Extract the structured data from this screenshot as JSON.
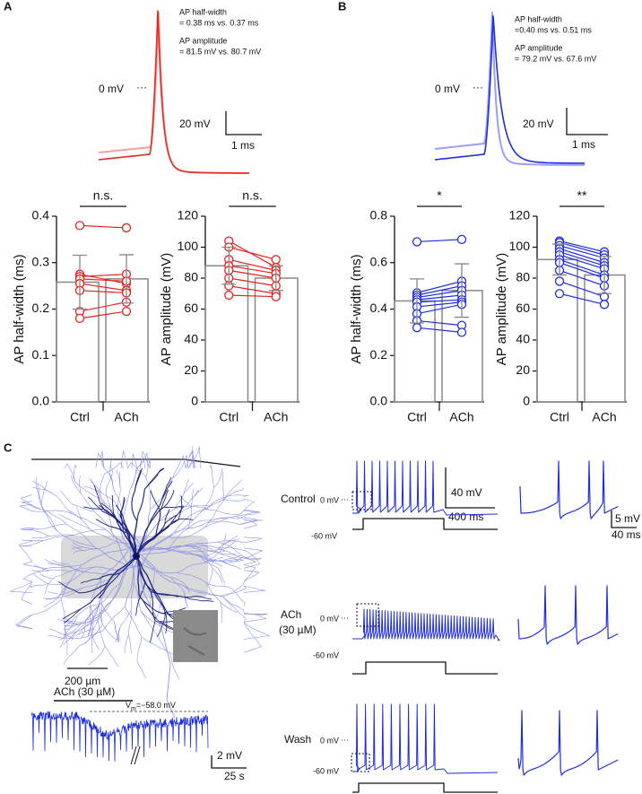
{
  "figure": {
    "panel_a": {
      "label": "A",
      "hw_title": "AP half-width",
      "hw_text": "= 0.38 ms vs. 0.37 ms",
      "amp_title": "AP amplitude",
      "amp_text": "= 81.5 mV vs. 80.7 mV",
      "zero": "0 mV",
      "dots": "···",
      "scale_v": "20 mV",
      "scale_t": "1 ms"
    },
    "panel_b": {
      "label": "B",
      "hw_title": "AP half-width",
      "hw_text": "=0.40 ms vs. 0.51 ms",
      "amp_title": "AP amplitude",
      "amp_text": "= 79.2 mV vs. 67.6 mV",
      "zero": "0 mV",
      "dots": "···",
      "scale_v": "20 mV",
      "scale_t": "1 ms"
    },
    "panel_c": {
      "label": "C",
      "scale_morph": "200 µm",
      "drug_bar": "ACh (30 µM)",
      "vm_v": "V",
      "vm_sub": "m",
      "vm_rest": "=−58.0 mV",
      "scale_v": "2 mV",
      "scale_t": "25 s",
      "rows": [
        {
          "name": "Control",
          "zero": "0 mV",
          "dots": "···",
          "rest": "-60 mV"
        },
        {
          "name": "ACh",
          "name2": "(30 µM)",
          "zero": "0 mV",
          "dots": "···",
          "rest": "-60 mV"
        },
        {
          "name": "Wash",
          "zero": "0 mV",
          "dots": "···",
          "rest": "-60 mV"
        }
      ],
      "train_scale_v": "40 mV",
      "train_scale_t": "400 ms",
      "zoom_scale_v": "5 mV",
      "zoom_scale_t": "40 ms"
    }
  },
  "chart_data": [
    {
      "type": "bar",
      "ylabel": "AP half-width (ms)",
      "categories": [
        "Ctrl",
        "ACh"
      ],
      "values": [
        0.258,
        0.265
      ],
      "errors": [
        0.058,
        0.052
      ],
      "color": "#888888",
      "significance": "n.s.",
      "ylim": [
        0,
        0.4
      ],
      "yticks": [
        {
          "value": 0,
          "label": "0.0"
        },
        0.1,
        0.2,
        0.3,
        0.4
      ],
      "pairs": {
        "color": "#e8231f",
        "values": [
          [
            0.38,
            0.375
          ],
          [
            0.275,
            0.255
          ],
          [
            0.27,
            0.275
          ],
          [
            0.265,
            0.26
          ],
          [
            0.255,
            0.24
          ],
          [
            0.24,
            0.235
          ],
          [
            0.195,
            0.215
          ],
          [
            0.18,
            0.195
          ]
        ]
      }
    },
    {
      "type": "bar",
      "ylabel": "AP amplitude (mV)",
      "categories": [
        "Ctrl",
        "ACh"
      ],
      "values": [
        88,
        80
      ],
      "errors": [
        12,
        8
      ],
      "color": "#888888",
      "significance": "n.s.",
      "ylim": [
        0,
        120
      ],
      "yticks": [
        0,
        20,
        40,
        60,
        80,
        100,
        120
      ],
      "pairs": {
        "color": "#e8231f",
        "values": [
          [
            104,
            87
          ],
          [
            100,
            92
          ],
          [
            92,
            85
          ],
          [
            88,
            83
          ],
          [
            85,
            80
          ],
          [
            80,
            75
          ],
          [
            75,
            70
          ],
          [
            69,
            68
          ]
        ]
      }
    },
    {
      "type": "bar",
      "ylabel": "AP half-width (ms)",
      "categories": [
        "Ctrl",
        "ACh"
      ],
      "values": [
        0.435,
        0.48
      ],
      "errors": [
        0.095,
        0.115
      ],
      "color": "#888888",
      "significance": "*",
      "ylim": [
        0,
        0.8
      ],
      "yticks": [
        {
          "value": 0,
          "label": "0.0"
        },
        0.2,
        0.4,
        0.6,
        0.8
      ],
      "pairs": {
        "color": "#1f2ee0",
        "values": [
          [
            0.69,
            0.7
          ],
          [
            0.47,
            0.52
          ],
          [
            0.46,
            0.5
          ],
          [
            0.45,
            0.48
          ],
          [
            0.44,
            0.46
          ],
          [
            0.43,
            0.44
          ],
          [
            0.41,
            0.43
          ],
          [
            0.38,
            0.42
          ],
          [
            0.35,
            0.33
          ],
          [
            0.32,
            0.3
          ]
        ]
      }
    },
    {
      "type": "bar",
      "ylabel": "AP amplitude (mV)",
      "categories": [
        "Ctrl",
        "ACh"
      ],
      "values": [
        92,
        82
      ],
      "errors": [
        10,
        12
      ],
      "color": "#888888",
      "significance": "**",
      "ylim": [
        0,
        120
      ],
      "yticks": [
        0,
        20,
        40,
        60,
        80,
        100,
        120
      ],
      "pairs": {
        "color": "#1f2ee0",
        "values": [
          [
            104,
            97
          ],
          [
            103,
            95
          ],
          [
            101,
            93
          ],
          [
            99,
            90
          ],
          [
            97,
            88
          ],
          [
            95,
            86
          ],
          [
            92,
            82
          ],
          [
            90,
            80
          ],
          [
            85,
            75
          ],
          [
            78,
            68
          ],
          [
            70,
            63
          ]
        ]
      }
    }
  ]
}
